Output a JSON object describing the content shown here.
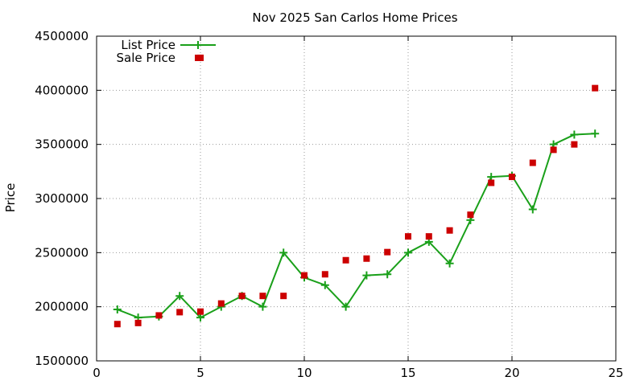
{
  "chart_data": {
    "type": "line",
    "title": "Nov 2025 San Carlos Home Prices",
    "xlabel": "",
    "ylabel": "Price",
    "xlim": [
      0,
      25
    ],
    "ylim": [
      1500000,
      4500000
    ],
    "xticks": [
      0,
      5,
      10,
      15,
      20,
      25
    ],
    "yticks": [
      1500000,
      2000000,
      2500000,
      3000000,
      3500000,
      4000000,
      4500000
    ],
    "grid": true,
    "legend_position": "top-left",
    "series": [
      {
        "name": "List Price",
        "style": "line-plus",
        "color": "#1aa01a",
        "x": [
          1,
          2,
          3,
          4,
          5,
          6,
          7,
          8,
          9,
          10,
          11,
          12,
          13,
          14,
          15,
          16,
          17,
          18,
          19,
          20,
          21,
          22,
          23,
          24
        ],
        "values": [
          1975000,
          1900000,
          1910000,
          2100000,
          1900000,
          2000000,
          2100000,
          2000000,
          2500000,
          2270000,
          2200000,
          2000000,
          2290000,
          2300000,
          2500000,
          2600000,
          2400000,
          2800000,
          3200000,
          3210000,
          2900000,
          3500000,
          3590000,
          3600000
        ]
      },
      {
        "name": "Sale Price",
        "style": "square",
        "color": "#cc0000",
        "x": [
          1,
          2,
          3,
          4,
          5,
          5,
          6,
          7,
          8,
          9,
          10,
          11,
          12,
          13,
          14,
          15,
          16,
          17,
          18,
          19,
          20,
          21,
          22,
          23,
          24
        ],
        "values": [
          1840000,
          1850000,
          1920000,
          1950000,
          1955000,
          4300000,
          2030000,
          2100000,
          2100000,
          2100000,
          2290000,
          2300000,
          2430000,
          2445000,
          2505000,
          2650000,
          2650000,
          2705000,
          2850000,
          3145000,
          3200000,
          3330000,
          3450000,
          3500000,
          4020000
        ]
      }
    ]
  }
}
